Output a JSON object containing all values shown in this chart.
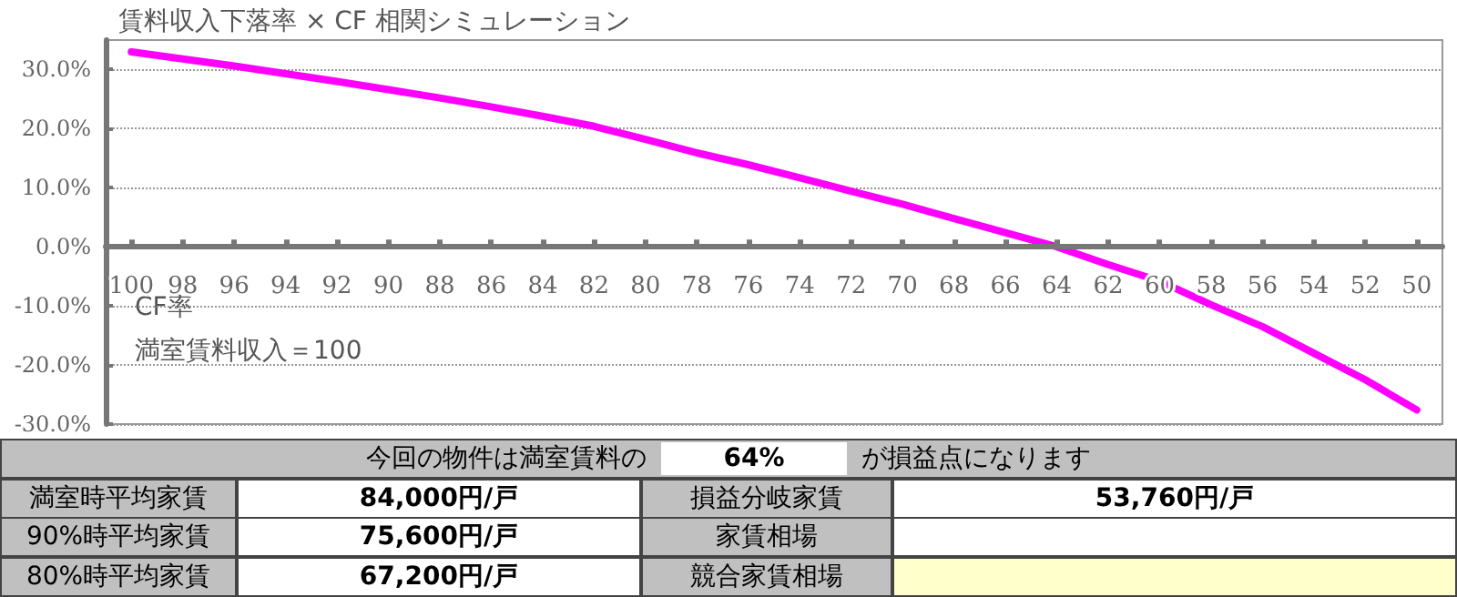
{
  "chart_data": {
    "type": "line",
    "title": "賃料収入下落率 × CF 相関シミュレーション",
    "categories": [
      "100",
      "98",
      "96",
      "94",
      "92",
      "90",
      "88",
      "86",
      "84",
      "82",
      "80",
      "78",
      "76",
      "74",
      "72",
      "70",
      "68",
      "66",
      "64",
      "62",
      "60",
      "58",
      "56",
      "54",
      "52",
      "50"
    ],
    "series": [
      {
        "color": "#ff00ff",
        "values": [
          33,
          31.8,
          30.6,
          29.3,
          28,
          26.6,
          25.2,
          23.7,
          22.1,
          20.4,
          18.2,
          15.9,
          13.9,
          11.7,
          9.4,
          7.2,
          4.8,
          2.4,
          0,
          -3,
          -5.8,
          -9.8,
          -13.5,
          -18,
          -22.5,
          -27.6
        ]
      }
    ],
    "ylim": [
      -30,
      35
    ],
    "yticks": [
      {
        "value": -30,
        "label": "-30.0%"
      },
      {
        "value": -20,
        "label": "-20.0%"
      },
      {
        "value": -10,
        "label": "-10.0%"
      },
      {
        "value": 0,
        "label": "0.0%"
      },
      {
        "value": 10,
        "label": "10.0%"
      },
      {
        "value": 20,
        "label": "20.0%"
      },
      {
        "value": 30,
        "label": "30.0%"
      }
    ],
    "grid": "y",
    "marker": "none",
    "line_style": "solid",
    "annotations": [
      "CF率",
      "満室賃料収入＝100",
      "今回の物件は満室賃料の",
      "64%",
      "が損益点になります",
      "満室時平均家賃",
      "84,000円/戸",
      "損益分岐家賃",
      "53,760円/戸",
      "90%時平均家賃",
      "75,600円/戸",
      "家賃相場",
      "80%時平均家賃",
      "67,200円/戸",
      "競合家賃相場"
    ]
  }
}
